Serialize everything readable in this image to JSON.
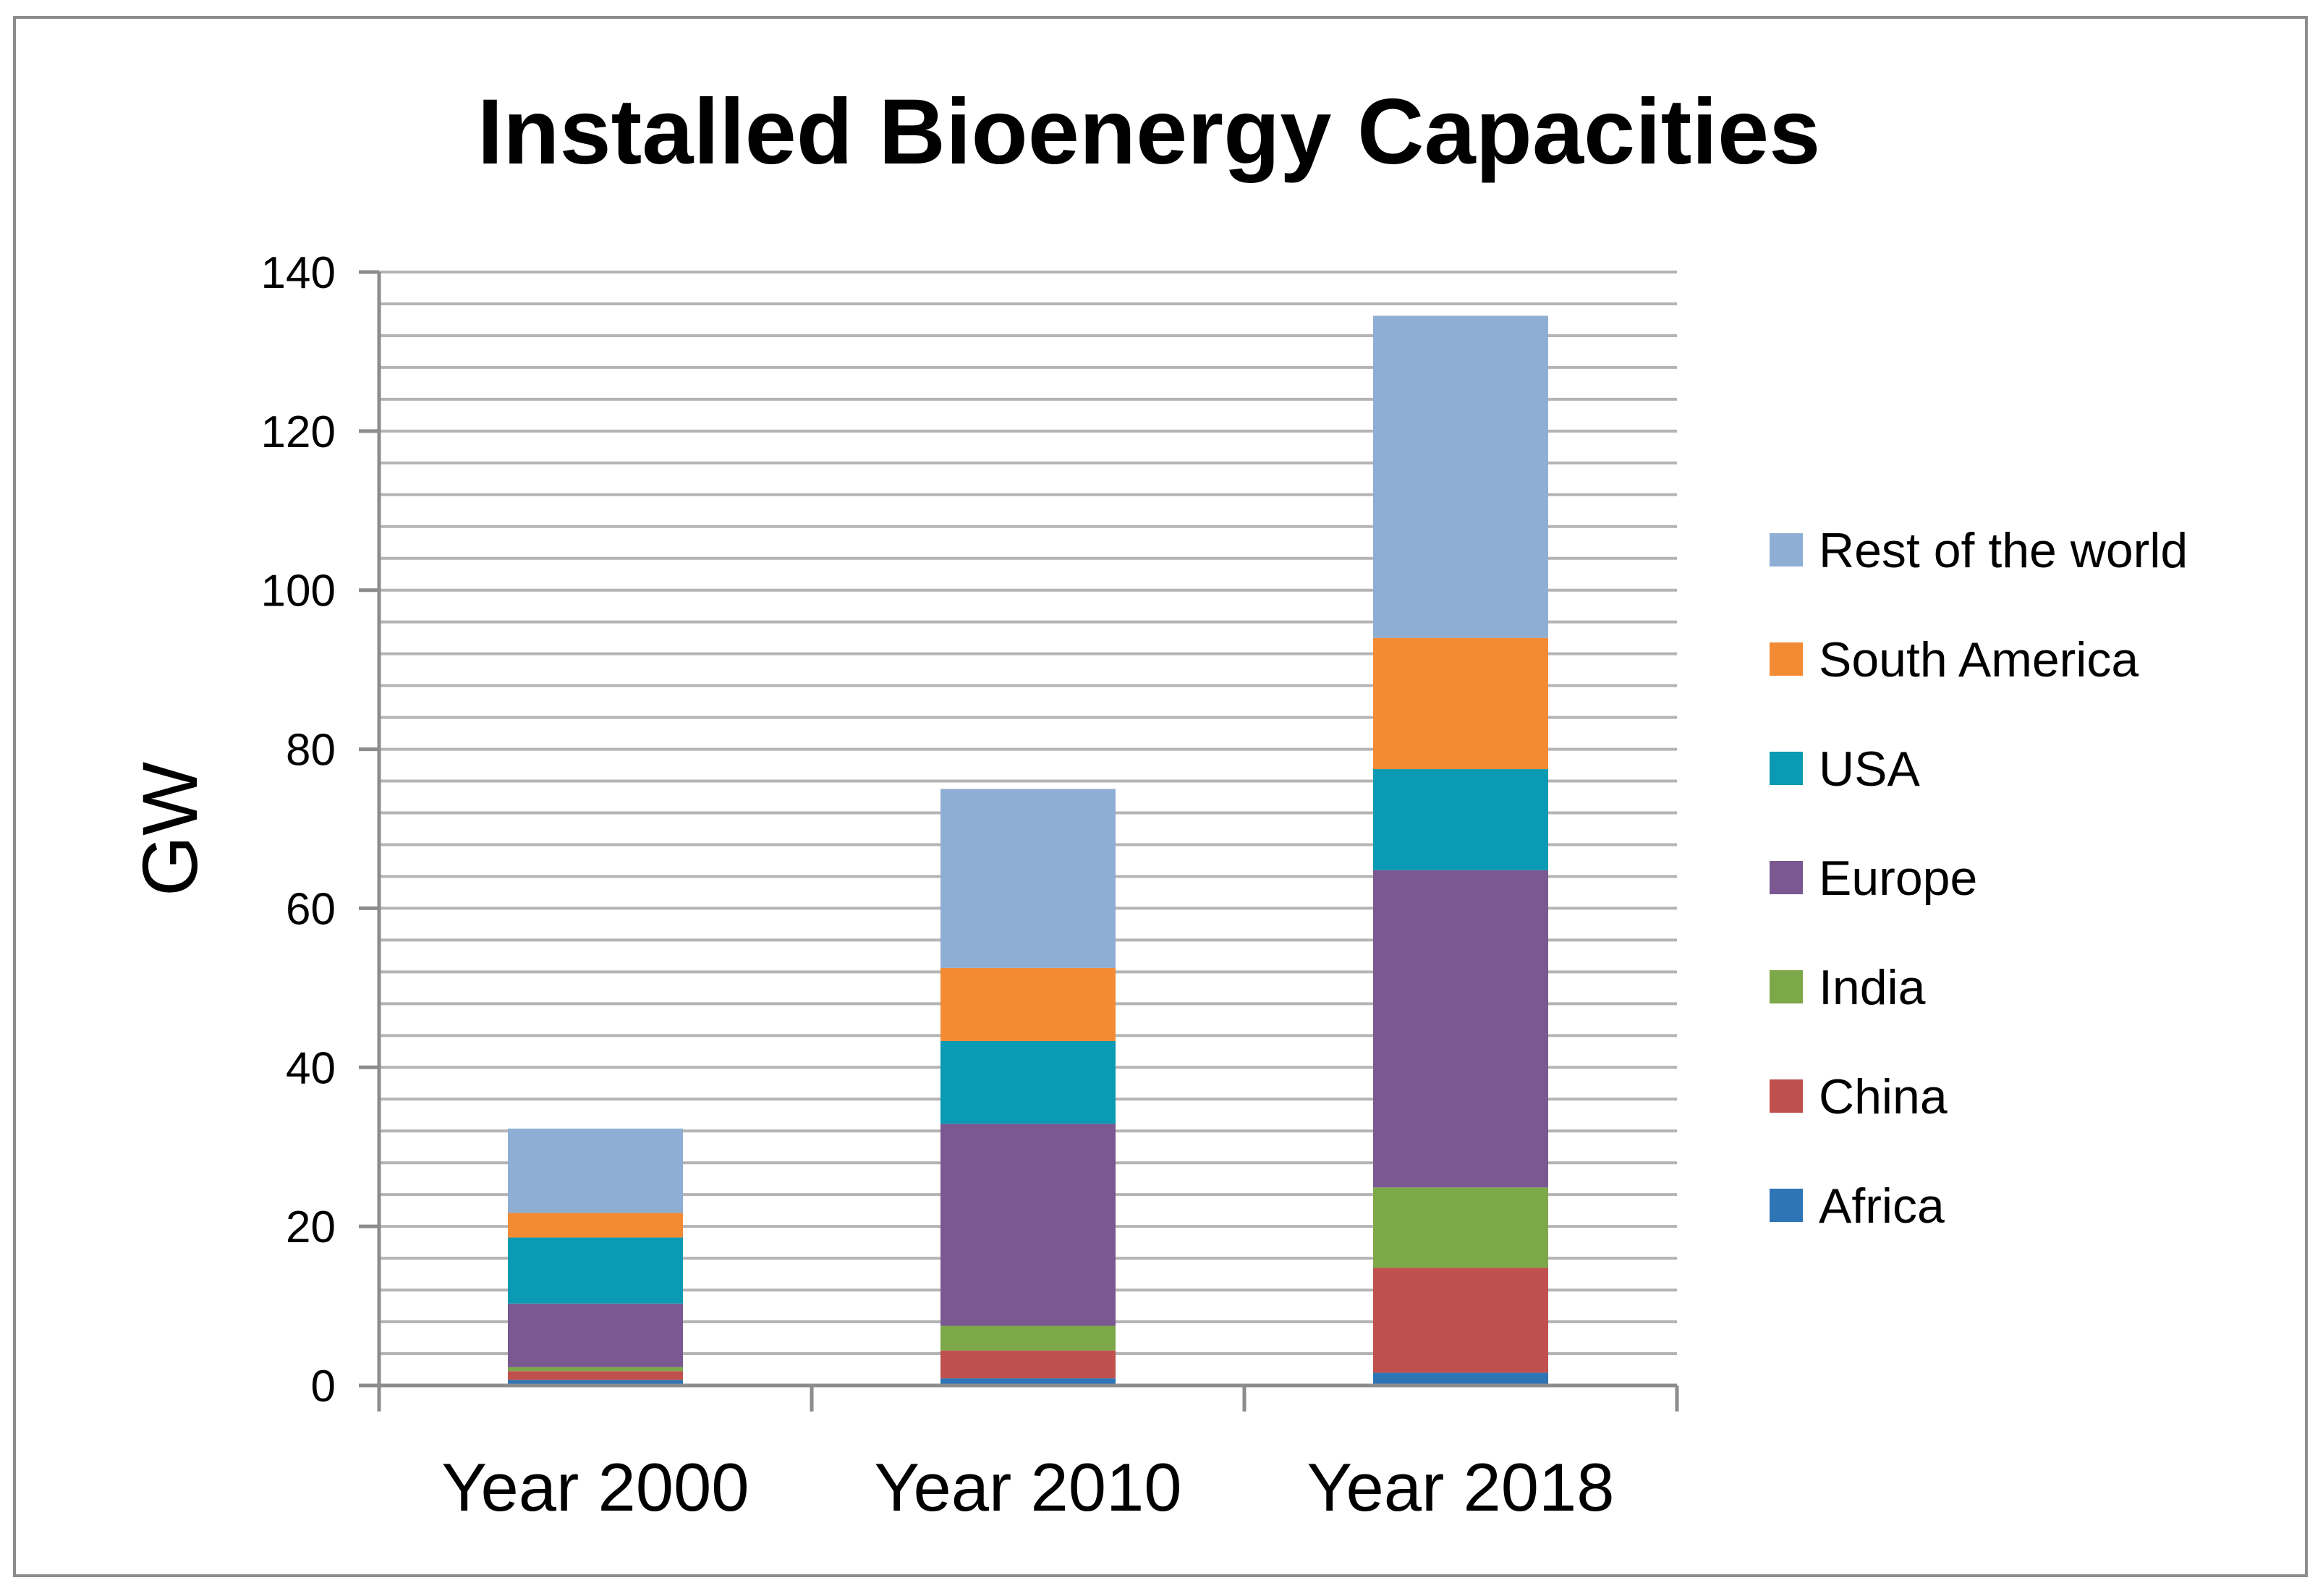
{
  "chart_data": {
    "type": "bar",
    "stacked": true,
    "title": "Installed Bioenergy Capacities",
    "xlabel": "",
    "ylabel": "GW",
    "ylim": [
      0,
      140
    ],
    "ytick_step": 20,
    "minor_grid_step": 4,
    "grid": true,
    "legend_position": "right",
    "categories": [
      "Year 2000",
      "Year 2010",
      "Year 2018"
    ],
    "series": [
      {
        "name": "Africa",
        "color": "#2e75b6",
        "values": [
          0.7,
          0.9,
          1.6
        ]
      },
      {
        "name": "China",
        "color": "#c0504d",
        "values": [
          1.1,
          3.5,
          13.2
        ]
      },
      {
        "name": "India",
        "color": "#7ca84a",
        "values": [
          0.5,
          3.1,
          10.1
        ]
      },
      {
        "name": "Europe",
        "color": "#7b5892",
        "values": [
          8.0,
          25.4,
          39.9
        ]
      },
      {
        "name": "USA",
        "color": "#0b9ab3",
        "values": [
          8.3,
          10.4,
          12.7
        ]
      },
      {
        "name": "South America",
        "color": "#f38b35",
        "values": [
          3.1,
          9.2,
          16.5
        ]
      },
      {
        "name": "Rest of the world",
        "color": "#8eaed4",
        "values": [
          10.6,
          22.5,
          40.5
        ]
      }
    ]
  }
}
